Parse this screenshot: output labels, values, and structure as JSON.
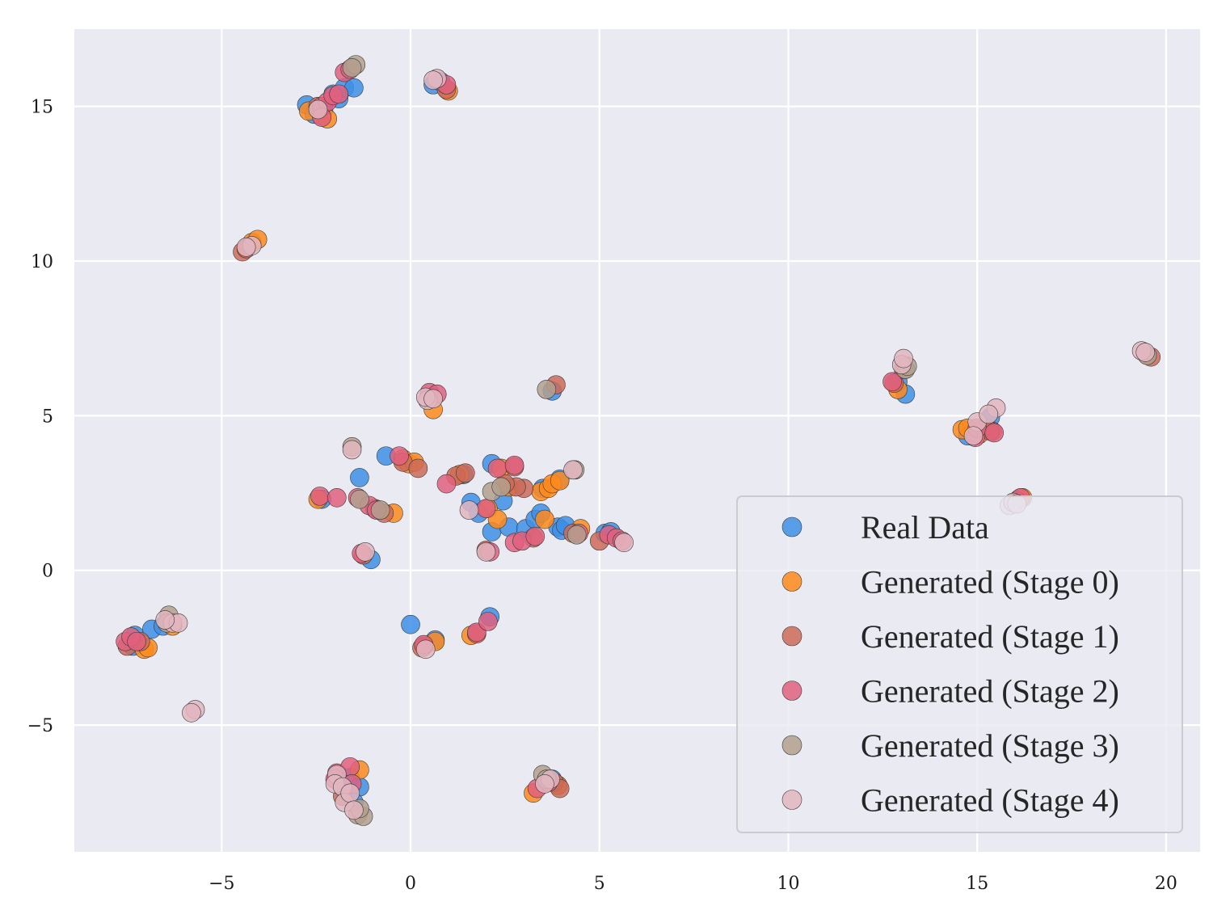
{
  "chart_data": {
    "type": "scatter",
    "title": "",
    "xlabel": "",
    "ylabel": "",
    "xlim": [
      -8.9,
      20.9
    ],
    "ylim": [
      -9.1,
      17.5
    ],
    "xticks": [
      -5,
      0,
      5,
      10,
      15,
      20
    ],
    "xtick_labels": [
      "−5",
      "0",
      "5",
      "10",
      "15",
      "20"
    ],
    "yticks": [
      -5,
      0,
      5,
      10,
      15
    ],
    "ytick_labels": [
      "−5",
      "0",
      "5",
      "10",
      "15"
    ],
    "grid": true,
    "legend_position": "bottom-right",
    "series": [
      {
        "name": "Real Data",
        "color": "#3d8fe6",
        "points": [
          [
            -2.75,
            15.05
          ],
          [
            -2.55,
            14.75
          ],
          [
            -2.3,
            14.9
          ],
          [
            -2.05,
            15.4
          ],
          [
            -1.9,
            15.25
          ],
          [
            -1.75,
            15.6
          ],
          [
            -1.5,
            15.6
          ],
          [
            0.6,
            15.7
          ],
          [
            0.8,
            15.8
          ],
          [
            -7.3,
            -2.1
          ],
          [
            -7.35,
            -2.45
          ],
          [
            -6.85,
            -1.9
          ],
          [
            -6.55,
            -1.8
          ],
          [
            3.75,
            5.8
          ],
          [
            -0.65,
            3.7
          ],
          [
            -1.35,
            3.0
          ],
          [
            -2.35,
            2.3
          ],
          [
            1.4,
            3.1
          ],
          [
            1.6,
            2.2
          ],
          [
            1.8,
            1.85
          ],
          [
            2.15,
            3.45
          ],
          [
            2.45,
            2.25
          ],
          [
            2.15,
            1.25
          ],
          [
            2.6,
            1.4
          ],
          [
            3.05,
            1.35
          ],
          [
            3.3,
            1.65
          ],
          [
            3.45,
            1.85
          ],
          [
            3.5,
            2.65
          ],
          [
            3.9,
            1.4
          ],
          [
            4.0,
            1.3
          ],
          [
            4.1,
            1.45
          ],
          [
            3.95,
            2.95
          ],
          [
            5.15,
            1.2
          ],
          [
            5.3,
            1.25
          ],
          [
            -1.05,
            0.35
          ],
          [
            0.0,
            -1.75
          ],
          [
            2.1,
            -1.5
          ],
          [
            0.65,
            -2.25
          ],
          [
            13.1,
            5.7
          ],
          [
            12.9,
            6.1
          ],
          [
            14.75,
            4.35
          ],
          [
            15.1,
            4.55
          ],
          [
            15.35,
            4.95
          ],
          [
            -1.6,
            -6.7
          ],
          [
            -1.35,
            -7.0
          ],
          [
            -1.5,
            -7.5
          ],
          [
            3.75,
            -6.75
          ],
          [
            3.9,
            -6.95
          ]
        ]
      },
      {
        "name": "Generated (Stage 0)",
        "color": "#ff8a1c",
        "points": [
          [
            -2.7,
            14.85
          ],
          [
            -2.35,
            14.7
          ],
          [
            -2.2,
            14.6
          ],
          [
            -4.2,
            10.6
          ],
          [
            -4.05,
            10.7
          ],
          [
            1.0,
            15.5
          ],
          [
            -7.05,
            -2.55
          ],
          [
            -6.95,
            -2.5
          ],
          [
            -6.3,
            -1.8
          ],
          [
            0.6,
            5.2
          ],
          [
            -0.2,
            3.6
          ],
          [
            -0.05,
            3.45
          ],
          [
            0.1,
            3.5
          ],
          [
            1.3,
            3.1
          ],
          [
            2.05,
            2.0
          ],
          [
            2.3,
            1.65
          ],
          [
            2.4,
            3.3
          ],
          [
            2.6,
            2.7
          ],
          [
            3.45,
            2.55
          ],
          [
            3.55,
            1.65
          ],
          [
            3.65,
            2.65
          ],
          [
            3.75,
            2.8
          ],
          [
            3.95,
            2.9
          ],
          [
            4.5,
            1.35
          ],
          [
            -0.45,
            1.85
          ],
          [
            -2.45,
            2.3
          ],
          [
            0.65,
            -2.3
          ],
          [
            0.35,
            -2.45
          ],
          [
            1.6,
            -2.1
          ],
          [
            12.9,
            5.85
          ],
          [
            14.6,
            4.55
          ],
          [
            14.75,
            4.6
          ],
          [
            15.05,
            4.4
          ],
          [
            15.4,
            4.5
          ],
          [
            16.1,
            2.3
          ],
          [
            16.2,
            2.35
          ],
          [
            -1.35,
            -6.45
          ],
          [
            3.25,
            -7.2
          ],
          [
            3.9,
            -6.95
          ]
        ]
      },
      {
        "name": "Generated (Stage 1)",
        "color": "#cc6a58",
        "points": [
          [
            -4.45,
            10.3
          ],
          [
            -4.35,
            10.4
          ],
          [
            -2.45,
            15.0
          ],
          [
            0.95,
            15.55
          ],
          [
            -7.5,
            -2.45
          ],
          [
            -7.15,
            -2.3
          ],
          [
            3.85,
            6.0
          ],
          [
            -0.2,
            3.5
          ],
          [
            0.2,
            3.3
          ],
          [
            1.2,
            3.05
          ],
          [
            1.45,
            3.15
          ],
          [
            2.75,
            3.35
          ],
          [
            3.0,
            2.65
          ],
          [
            2.8,
            2.7
          ],
          [
            2.5,
            2.8
          ],
          [
            3.25,
            1.05
          ],
          [
            4.3,
            1.2
          ],
          [
            5.0,
            0.95
          ],
          [
            -0.95,
            2.0
          ],
          [
            -0.7,
            1.85
          ],
          [
            -1.25,
            0.5
          ],
          [
            2.0,
            0.65
          ],
          [
            0.3,
            -2.5
          ],
          [
            1.75,
            -2.05
          ],
          [
            12.8,
            6.05
          ],
          [
            13.05,
            6.5
          ],
          [
            15.35,
            4.5
          ],
          [
            16.05,
            2.25
          ],
          [
            19.6,
            6.9
          ],
          [
            -1.8,
            -7.3
          ],
          [
            3.8,
            -6.85
          ],
          [
            3.95,
            -7.05
          ]
        ]
      },
      {
        "name": "Generated (Stage 2)",
        "color": "#e0607e",
        "points": [
          [
            -2.35,
            15.0
          ],
          [
            -2.2,
            15.15
          ],
          [
            -2.05,
            15.35
          ],
          [
            -1.9,
            15.4
          ],
          [
            -1.75,
            16.1
          ],
          [
            -1.6,
            16.2
          ],
          [
            -2.35,
            14.65
          ],
          [
            0.95,
            15.7
          ],
          [
            -7.55,
            -2.3
          ],
          [
            -7.4,
            -2.15
          ],
          [
            -7.25,
            -2.3
          ],
          [
            0.5,
            5.75
          ],
          [
            0.7,
            5.7
          ],
          [
            -0.3,
            3.7
          ],
          [
            -2.4,
            2.4
          ],
          [
            -1.95,
            2.35
          ],
          [
            -1.4,
            2.35
          ],
          [
            -1.1,
            2.1
          ],
          [
            -0.9,
            1.95
          ],
          [
            0.95,
            2.8
          ],
          [
            2.0,
            2.0
          ],
          [
            2.3,
            3.3
          ],
          [
            2.75,
            3.4
          ],
          [
            2.75,
            0.9
          ],
          [
            2.95,
            0.95
          ],
          [
            3.3,
            1.1
          ],
          [
            2.1,
            0.6
          ],
          [
            -1.3,
            0.55
          ],
          [
            5.25,
            1.15
          ],
          [
            5.45,
            1.05
          ],
          [
            5.6,
            0.95
          ],
          [
            4.45,
            1.2
          ],
          [
            1.75,
            -2.0
          ],
          [
            2.05,
            -1.65
          ],
          [
            0.35,
            -2.4
          ],
          [
            12.75,
            6.1
          ],
          [
            14.95,
            4.3
          ],
          [
            15.0,
            4.6
          ],
          [
            15.45,
            4.45
          ],
          [
            16.15,
            2.35
          ],
          [
            -1.95,
            -6.55
          ],
          [
            -2.0,
            -6.75
          ],
          [
            -1.6,
            -6.35
          ],
          [
            -1.55,
            -6.9
          ],
          [
            3.35,
            -7.05
          ],
          [
            3.65,
            -6.85
          ]
        ]
      },
      {
        "name": "Generated (Stage 3)",
        "color": "#b3a08e",
        "points": [
          [
            -1.45,
            16.35
          ],
          [
            -1.55,
            16.25
          ],
          [
            -1.55,
            4.0
          ],
          [
            -1.35,
            2.3
          ],
          [
            -0.8,
            1.95
          ],
          [
            2.15,
            2.55
          ],
          [
            2.4,
            2.7
          ],
          [
            4.35,
            3.25
          ],
          [
            4.4,
            1.15
          ],
          [
            3.6,
            5.85
          ],
          [
            -6.4,
            -1.45
          ],
          [
            -6.45,
            -1.7
          ],
          [
            13.1,
            6.5
          ],
          [
            13.15,
            6.6
          ],
          [
            19.5,
            6.95
          ],
          [
            -1.4,
            -7.9
          ],
          [
            -1.25,
            -7.95
          ],
          [
            -1.35,
            -7.7
          ],
          [
            3.5,
            -6.6
          ],
          [
            3.6,
            -6.75
          ]
        ]
      },
      {
        "name": "Generated (Stage 4)",
        "color": "#e2b6c0",
        "points": [
          [
            -2.45,
            14.9
          ],
          [
            -4.2,
            10.5
          ],
          [
            -4.35,
            10.45
          ],
          [
            0.7,
            15.9
          ],
          [
            0.6,
            15.85
          ],
          [
            -6.3,
            -1.7
          ],
          [
            -6.15,
            -1.7
          ],
          [
            -6.5,
            -1.6
          ],
          [
            -5.7,
            -4.5
          ],
          [
            -5.8,
            -4.6
          ],
          [
            0.45,
            5.5
          ],
          [
            0.4,
            5.6
          ],
          [
            0.6,
            5.55
          ],
          [
            -1.55,
            3.9
          ],
          [
            1.55,
            1.95
          ],
          [
            2.0,
            0.6
          ],
          [
            4.3,
            3.25
          ],
          [
            5.65,
            0.9
          ],
          [
            -1.2,
            0.6
          ],
          [
            0.4,
            -2.55
          ],
          [
            13.0,
            6.65
          ],
          [
            13.05,
            6.85
          ],
          [
            15.0,
            4.8
          ],
          [
            15.5,
            5.25
          ],
          [
            15.3,
            5.05
          ],
          [
            14.9,
            4.35
          ],
          [
            15.85,
            2.1
          ],
          [
            15.95,
            2.2
          ],
          [
            16.05,
            2.15
          ],
          [
            19.35,
            7.1
          ],
          [
            19.45,
            7.05
          ],
          [
            -1.95,
            -6.6
          ],
          [
            -2.0,
            -6.9
          ],
          [
            -1.8,
            -7.0
          ],
          [
            -1.75,
            -7.5
          ],
          [
            -1.6,
            -7.2
          ],
          [
            -1.5,
            -7.75
          ],
          [
            3.7,
            -6.75
          ],
          [
            3.55,
            -6.9
          ]
        ]
      }
    ]
  }
}
